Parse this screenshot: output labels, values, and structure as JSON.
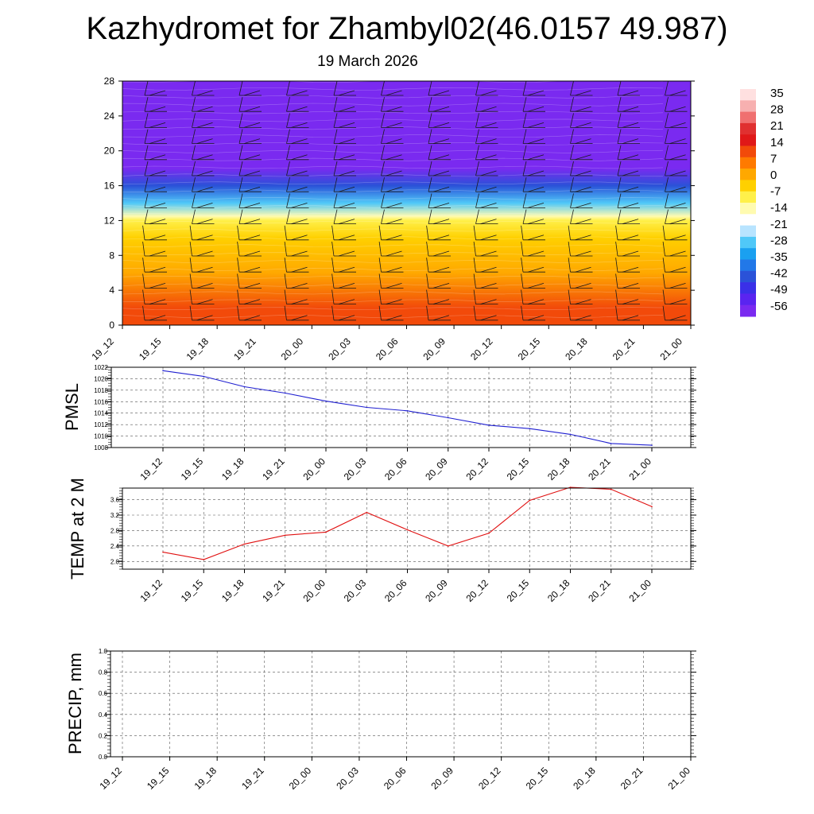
{
  "header": {
    "title": "Kazhydromet for Zhambyl02(46.0157 49.987)",
    "subtitle": "19 March 2026"
  },
  "colors": {
    "pmsl_line": "#1f1fd0",
    "temp_line": "#e01010",
    "precip_line": "#1a6e1a",
    "barb": "#1a1a1a"
  },
  "chart_data": [
    {
      "type": "heatmap",
      "name": "temperature-cross-section",
      "title": "",
      "categories": [
        "19_12",
        "19_15",
        "19_18",
        "19_21",
        "20_00",
        "20_03",
        "20_06",
        "20_09",
        "20_12",
        "20_15",
        "20_18",
        "20_21",
        "21_00"
      ],
      "y_ticks": [
        "0",
        "4",
        "8",
        "12",
        "16",
        "20",
        "24",
        "28"
      ],
      "ylim": [
        0,
        28
      ],
      "colorbar": {
        "labels": [
          "35",
          "28",
          "21",
          "14",
          "7",
          "0",
          "-7",
          "-14",
          "-21",
          "-28",
          "-35",
          "-42",
          "-49",
          "-56"
        ],
        "colors": [
          "#ffe0e0",
          "#f7b0b0",
          "#f07070",
          "#e03030",
          "#e01818",
          "#f24a0a",
          "#ff7a00",
          "#ffa800",
          "#ffd000",
          "#fff04a",
          "#fffbb0",
          "#ffffff",
          "#b8e4ff",
          "#50c8f8",
          "#1aa0f0",
          "#2278e8",
          "#2a52d8",
          "#3a30e8",
          "#5a24f0",
          "#7a2af0"
        ]
      },
      "profile": [
        {
          "z": 0,
          "t": 10
        },
        {
          "z": 2,
          "t": 9
        },
        {
          "z": 6,
          "t": 1
        },
        {
          "z": 10,
          "t": -6
        },
        {
          "z": 12,
          "t": -9
        },
        {
          "z": 12.5,
          "t": -16
        },
        {
          "z": 14,
          "t": -28
        },
        {
          "z": 16,
          "t": -45
        },
        {
          "z": 18,
          "t": -58
        },
        {
          "z": 20,
          "t": -60
        },
        {
          "z": 24,
          "t": -58
        },
        {
          "z": 28,
          "t": -62
        }
      ]
    },
    {
      "type": "line",
      "name": "pmsl",
      "ylabel": "PMSL",
      "categories": [
        "19_12",
        "19_15",
        "19_18",
        "19_21",
        "20_00",
        "20_03",
        "20_06",
        "20_09",
        "20_12",
        "20_15",
        "20_18",
        "20_21",
        "21_00"
      ],
      "values": [
        1021.4,
        1020.4,
        1018.6,
        1017.5,
        1016.1,
        1015.0,
        1014.4,
        1013.2,
        1011.9,
        1011.3,
        1010.3,
        1008.7,
        1008.4
      ],
      "ylim": [
        1008,
        1022
      ],
      "y_ticks": [
        "1008",
        "1010",
        "1012",
        "1014",
        "1016",
        "1018",
        "1020",
        "1022"
      ]
    },
    {
      "type": "line",
      "name": "temp-2m",
      "ylabel": "TEMP at 2 M",
      "categories": [
        "19_12",
        "19_15",
        "19_18",
        "19_21",
        "20_00",
        "20_03",
        "20_06",
        "20_09",
        "20_12",
        "20_15",
        "20_18",
        "20_21",
        "21_00"
      ],
      "values": [
        2.24,
        2.05,
        2.45,
        2.68,
        2.76,
        3.27,
        2.82,
        2.4,
        2.73,
        3.58,
        3.92,
        3.87,
        3.42
      ],
      "ylim": [
        1.8,
        3.9
      ],
      "y_ticks": [
        "2.0",
        "2.4",
        "2.8",
        "3.2",
        "3.6"
      ]
    },
    {
      "type": "line",
      "name": "precip",
      "ylabel": "PRECIP, mm",
      "categories": [
        "19_12",
        "19_15",
        "19_18",
        "19_21",
        "20_00",
        "20_03",
        "20_06",
        "20_09",
        "20_12",
        "20_15",
        "20_18",
        "20_21",
        "21_00"
      ],
      "values": [
        0,
        0,
        0,
        0,
        0,
        0,
        0,
        0,
        0,
        0,
        0,
        0,
        0
      ],
      "ylim": [
        0,
        1
      ],
      "y_ticks": [
        "0.0",
        "0.2",
        "0.4",
        "0.6",
        "0.8",
        "1.0"
      ]
    }
  ]
}
